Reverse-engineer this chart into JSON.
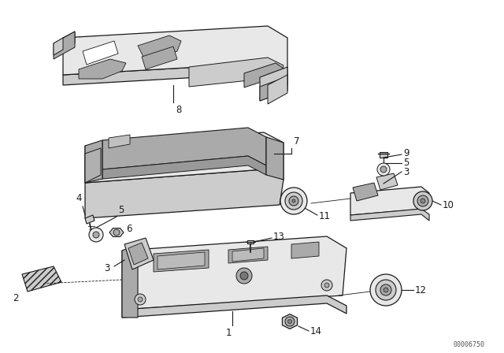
{
  "bg_color": "#ffffff",
  "lc": "#1a1a1a",
  "fill_light": "#e8e8e8",
  "fill_mid": "#cccccc",
  "fill_dark": "#aaaaaa",
  "fill_darkest": "#888888",
  "watermark": "00006750",
  "label_fontsize": 8.5
}
